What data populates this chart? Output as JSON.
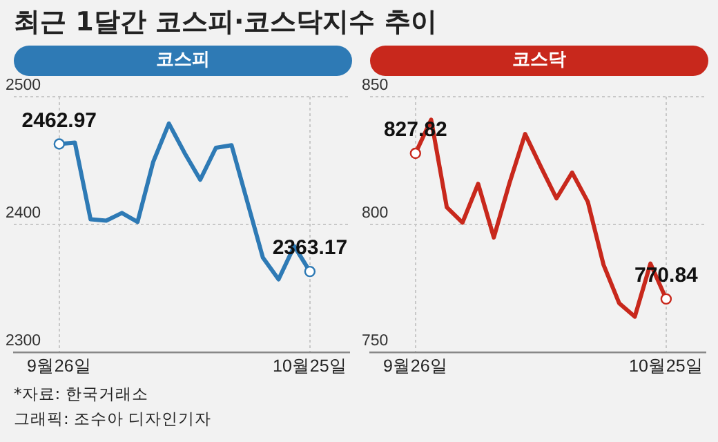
{
  "chart_data": [
    {
      "type": "line",
      "title": "최근 1달간 코스피·코스닥지수 추이",
      "subtitle": "코스피",
      "categories": [
        "9월26일",
        null,
        null,
        null,
        null,
        null,
        null,
        null,
        null,
        null,
        null,
        null,
        null,
        null,
        null,
        null,
        "10월25일"
      ],
      "values": [
        2462.97,
        2464,
        2404,
        2403,
        2409,
        2402,
        2449,
        2479,
        2456,
        2435,
        2460,
        2462,
        2418,
        2374,
        2357,
        2383,
        2363.17
      ],
      "value_labels": [
        "2462.97",
        null,
        null,
        null,
        null,
        null,
        null,
        null,
        null,
        null,
        null,
        null,
        null,
        null,
        null,
        null,
        "2363.17"
      ],
      "color": "#2e7ab5",
      "ylim": [
        2300,
        2500
      ],
      "yticks": [
        2300,
        2400,
        2500
      ],
      "grid": true,
      "marker": "none",
      "annotations": [
        "*자료: 한국거래소",
        "그래픽: 조수아 디자인기자"
      ]
    },
    {
      "type": "line",
      "subtitle": "코스닥",
      "categories": [
        "9월26일",
        null,
        null,
        null,
        null,
        null,
        null,
        null,
        null,
        null,
        null,
        null,
        null,
        null,
        null,
        null,
        "10월25일"
      ],
      "values": [
        827.82,
        841,
        806.7,
        800.7,
        815.9,
        794.9,
        816.2,
        835.4,
        822.6,
        810.2,
        820.3,
        808.9,
        784.3,
        769.2,
        763.9,
        784.7,
        770.84
      ],
      "value_labels": [
        "827.82",
        null,
        null,
        null,
        null,
        null,
        null,
        null,
        null,
        null,
        null,
        null,
        null,
        null,
        null,
        null,
        "770.84"
      ],
      "color": "#c8281c",
      "ylim": [
        750,
        850
      ],
      "yticks": [
        750,
        800,
        850
      ],
      "grid": true,
      "marker": "none"
    }
  ]
}
